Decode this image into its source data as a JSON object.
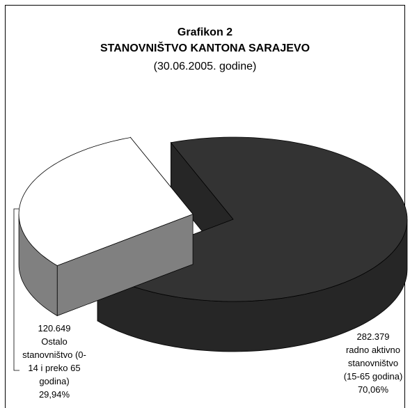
{
  "chart_data": {
    "type": "pie",
    "title": "Grafikon 2",
    "subtitle": "STANOVNIŠTVO KANTONA SARAJEVO",
    "date": "(30.06.2005. godine)",
    "categories": [
      "Ostalo stanovništvo (0-14 i preko 65 godina)",
      "radno aktivno stanovništvo (15-65 godina)"
    ],
    "values": [
      29.94,
      70.06
    ],
    "value_labels": [
      "29,94%",
      "70,06%"
    ],
    "counts": [
      120649,
      282379
    ],
    "count_labels": [
      "120.649",
      "282.379"
    ],
    "colors": [
      "#ffffff",
      "#333333"
    ],
    "explode": [
      0.24,
      0
    ]
  }
}
